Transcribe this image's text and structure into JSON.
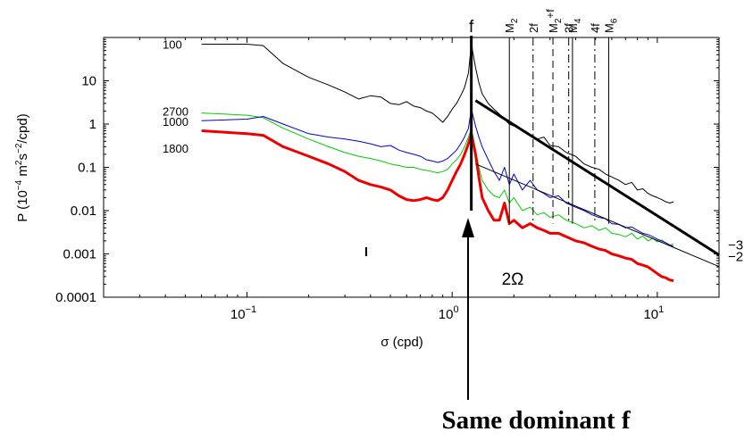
{
  "chart_data": {
    "type": "line",
    "xscale": "log",
    "yscale": "log",
    "xlim": [
      0.02,
      20
    ],
    "ylim": [
      0.0001,
      100
    ],
    "xlabel": "σ (cpd)",
    "ylabel": "P (10^-4 m^2 s^-2 /cpd)",
    "ylabel_parts": {
      "prefix": "P (10",
      "exp1": "−4",
      "mid1": " m",
      "exp2": "2",
      "mid2": "s",
      "exp3": "−2",
      "suffix": "/cpd)"
    },
    "xticks": [
      {
        "value": 0.1,
        "base": "10",
        "exp": "−1"
      },
      {
        "value": 1,
        "base": "10",
        "exp": "0"
      },
      {
        "value": 10,
        "base": "10",
        "exp": "1"
      }
    ],
    "yticks": [
      {
        "value": 10,
        "label": "10"
      },
      {
        "value": 1,
        "label": "1"
      },
      {
        "value": 0.1,
        "label": "0.1"
      },
      {
        "value": 0.01,
        "label": "0.01"
      },
      {
        "value": 0.001,
        "label": "0.001"
      },
      {
        "value": 0.0001,
        "label": "0.0001"
      }
    ],
    "series": [
      {
        "name": "100",
        "color": "#000000",
        "width": 1,
        "x": [
          0.06,
          0.1,
          0.12,
          0.15,
          0.2,
          0.25,
          0.3,
          0.35,
          0.4,
          0.45,
          0.5,
          0.55,
          0.6,
          0.65,
          0.7,
          0.75,
          0.8,
          0.85,
          0.9,
          0.95,
          1.0,
          1.05,
          1.1,
          1.15,
          1.2,
          1.24,
          1.3,
          1.35,
          1.4,
          1.5,
          1.6,
          1.7,
          1.8,
          1.9,
          2.0,
          2.2,
          2.4,
          2.6,
          2.8,
          3.0,
          3.3,
          3.6,
          4.0,
          4.4,
          4.8,
          5.2,
          5.6,
          6.0,
          6.5,
          7.0,
          7.5,
          8.0,
          8.5,
          9.0,
          9.5,
          10.0,
          10.5,
          11.0,
          11.5,
          12.0
        ],
        "y": [
          70,
          70,
          65,
          25,
          12,
          8,
          5.5,
          3.8,
          4.5,
          4.2,
          3.0,
          2.8,
          3.3,
          2.6,
          2.4,
          2.0,
          1.8,
          1.4,
          1.1,
          1.5,
          2.2,
          3.0,
          4.5,
          7,
          15,
          70,
          20,
          9,
          5,
          3,
          2.2,
          1.7,
          1.3,
          1.0,
          0.9,
          0.75,
          0.55,
          0.45,
          0.5,
          0.32,
          0.3,
          0.22,
          0.18,
          0.12,
          0.1,
          0.09,
          0.07,
          0.06,
          0.05,
          0.04,
          0.045,
          0.03,
          0.032,
          0.025,
          0.022,
          0.02,
          0.018,
          0.016,
          0.015,
          0.016
        ]
      },
      {
        "name": "2700",
        "color": "#00cc00",
        "width": 1,
        "x": [
          0.06,
          0.1,
          0.12,
          0.15,
          0.2,
          0.25,
          0.3,
          0.35,
          0.4,
          0.45,
          0.5,
          0.55,
          0.6,
          0.65,
          0.7,
          0.75,
          0.8,
          0.85,
          0.9,
          0.95,
          1.0,
          1.05,
          1.1,
          1.15,
          1.2,
          1.24,
          1.3,
          1.35,
          1.4,
          1.5,
          1.6,
          1.7,
          1.8,
          1.9,
          2.0,
          2.2,
          2.4,
          2.6,
          2.8,
          3.0,
          3.3,
          3.6,
          4.0,
          4.4,
          4.8,
          5.2,
          5.6,
          6.0,
          6.5,
          7.0,
          7.5,
          8.0,
          8.5,
          9.0,
          9.5,
          10.0,
          10.5,
          11.0,
          11.5,
          12.0
        ],
        "y": [
          1.8,
          1.6,
          1.4,
          0.8,
          0.45,
          0.3,
          0.22,
          0.18,
          0.16,
          0.14,
          0.12,
          0.11,
          0.1,
          0.1,
          0.09,
          0.085,
          0.08,
          0.075,
          0.08,
          0.09,
          0.12,
          0.15,
          0.2,
          0.3,
          0.5,
          0.8,
          0.25,
          0.1,
          0.05,
          0.03,
          0.022,
          0.02,
          0.03,
          0.015,
          0.02,
          0.01,
          0.012,
          0.008,
          0.009,
          0.007,
          0.008,
          0.006,
          0.005,
          0.004,
          0.0045,
          0.0035,
          0.004,
          0.003,
          0.0028,
          0.0025,
          0.003,
          0.0022,
          0.0026,
          0.002,
          0.0023,
          0.0019,
          0.0021,
          0.0018,
          0.0016,
          0.0017
        ]
      },
      {
        "name": "1000",
        "color": "#0000cc",
        "width": 1,
        "x": [
          0.06,
          0.1,
          0.12,
          0.15,
          0.2,
          0.25,
          0.3,
          0.35,
          0.4,
          0.45,
          0.5,
          0.55,
          0.6,
          0.65,
          0.7,
          0.75,
          0.8,
          0.85,
          0.9,
          0.95,
          1.0,
          1.05,
          1.1,
          1.15,
          1.2,
          1.24,
          1.3,
          1.35,
          1.4,
          1.5,
          1.6,
          1.7,
          1.8,
          1.9,
          2.0,
          2.2,
          2.4,
          2.6,
          2.8,
          3.0,
          3.3,
          3.6,
          4.0,
          4.4,
          4.8,
          5.2,
          5.6,
          6.0,
          6.5,
          7.0,
          7.5,
          8.0,
          8.5,
          9.0,
          9.5,
          10.0,
          10.5,
          11.0,
          11.5,
          12.0
        ],
        "y": [
          1.2,
          1.3,
          1.5,
          1.0,
          0.6,
          0.5,
          0.45,
          0.4,
          0.35,
          0.3,
          0.32,
          0.25,
          0.22,
          0.2,
          0.18,
          0.15,
          0.14,
          0.13,
          0.14,
          0.16,
          0.2,
          0.25,
          0.35,
          0.5,
          0.8,
          2.2,
          0.9,
          0.5,
          0.3,
          0.15,
          0.08,
          0.05,
          0.1,
          0.04,
          0.07,
          0.03,
          0.05,
          0.03,
          0.025,
          0.02,
          0.022,
          0.015,
          0.012,
          0.01,
          0.008,
          0.007,
          0.0065,
          0.005,
          0.0048,
          0.004,
          0.0042,
          0.0035,
          0.003,
          0.0028,
          0.0025,
          0.0022,
          0.002,
          0.0018,
          0.0016,
          0.0015
        ]
      },
      {
        "name": "1800",
        "color": "#ee0000",
        "width": 3,
        "x": [
          0.06,
          0.1,
          0.12,
          0.15,
          0.2,
          0.25,
          0.3,
          0.35,
          0.4,
          0.45,
          0.5,
          0.55,
          0.6,
          0.65,
          0.7,
          0.75,
          0.8,
          0.85,
          0.9,
          0.95,
          1.0,
          1.05,
          1.1,
          1.15,
          1.2,
          1.24,
          1.3,
          1.35,
          1.4,
          1.5,
          1.6,
          1.7,
          1.8,
          1.9,
          2.0,
          2.2,
          2.4,
          2.6,
          2.8,
          3.0,
          3.3,
          3.6,
          4.0,
          4.4,
          4.8,
          5.2,
          5.6,
          6.0,
          6.5,
          7.0,
          7.5,
          8.0,
          8.5,
          9.0,
          9.5,
          10.0,
          10.5,
          11.0,
          11.5,
          12.0
        ],
        "y": [
          0.7,
          0.6,
          0.55,
          0.3,
          0.18,
          0.12,
          0.08,
          0.05,
          0.04,
          0.035,
          0.03,
          0.022,
          0.018,
          0.017,
          0.018,
          0.02,
          0.018,
          0.017,
          0.02,
          0.03,
          0.05,
          0.08,
          0.12,
          0.2,
          0.35,
          0.6,
          0.2,
          0.06,
          0.02,
          0.01,
          0.006,
          0.006,
          0.015,
          0.005,
          0.006,
          0.004,
          0.005,
          0.004,
          0.0035,
          0.003,
          0.003,
          0.0025,
          0.002,
          0.0018,
          0.0015,
          0.0013,
          0.0012,
          0.001,
          0.0009,
          0.0008,
          0.00075,
          0.0006,
          0.00055,
          0.0005,
          0.00042,
          0.00035,
          0.0003,
          0.00028,
          0.00025,
          0.00024
        ]
      }
    ],
    "depth_labels": [
      {
        "text": "100",
        "y": 70
      },
      {
        "text": "2700",
        "y": 2.0
      },
      {
        "text": "1000",
        "y": 1.15
      },
      {
        "text": "1800",
        "y": 0.28
      }
    ],
    "f_marker": {
      "x": 1.24,
      "label": "f"
    },
    "tidal_lines": [
      {
        "x": 1.9,
        "label": "M",
        "sub": "2",
        "sup": "",
        "style": "solid"
      },
      {
        "x": 2.48,
        "label": "2f",
        "sub": "",
        "sup": "",
        "style": "dashdot"
      },
      {
        "x": 3.1,
        "label": "M",
        "sub": "2",
        "sup": "+f",
        "style": "dashed"
      },
      {
        "x": 3.7,
        "label": "3f",
        "sub": "",
        "sup": "",
        "style": "dashdot"
      },
      {
        "x": 3.86,
        "label": "M",
        "sub": "4",
        "sup": "",
        "style": "solid"
      },
      {
        "x": 4.96,
        "label": "4f",
        "sub": "",
        "sup": "",
        "style": "dashdot"
      },
      {
        "x": 5.8,
        "label": "M",
        "sub": "6",
        "sup": "",
        "style": "solid"
      }
    ],
    "slope_lines": [
      {
        "label": "−3",
        "x": [
          1.3,
          20
        ],
        "y": [
          3.5,
          0.00095
        ],
        "width": 3
      },
      {
        "label": "−2",
        "x": [
          1.3,
          20
        ],
        "y": [
          0.12,
          0.00051
        ],
        "width": 1
      }
    ],
    "annotations": {
      "two_omega": "2Ω",
      "error_bar": "I",
      "caption": "Same dominant f"
    }
  }
}
